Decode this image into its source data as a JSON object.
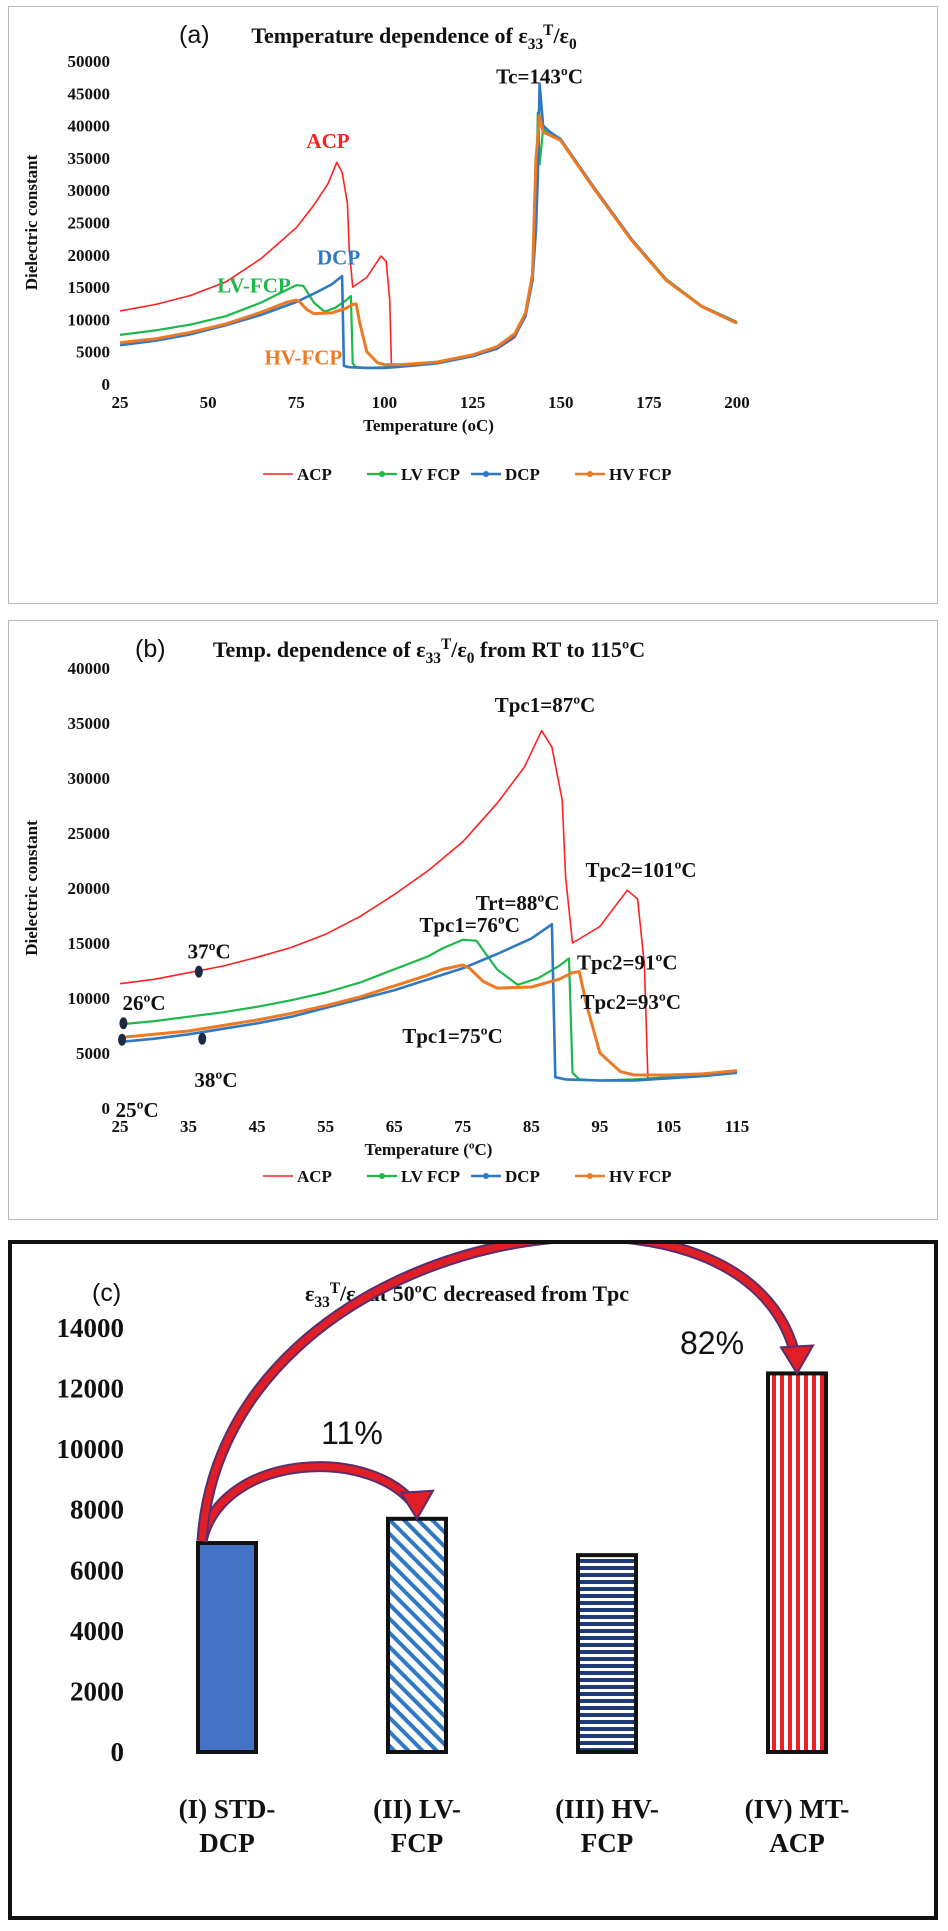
{
  "chart_data": [
    {
      "id": "a",
      "type": "line",
      "panel_label": "(a)",
      "title": "Temperature dependence of  ε33T/ε0",
      "xlabel": "Temperature (oC)",
      "ylabel": "Dielectric constant",
      "xlim": [
        25,
        200
      ],
      "ylim": [
        0,
        50000
      ],
      "x_ticks": [
        25,
        50,
        75,
        100,
        125,
        150,
        175,
        200
      ],
      "y_ticks": [
        0,
        5000,
        10000,
        15000,
        20000,
        25000,
        30000,
        35000,
        40000,
        45000,
        50000
      ],
      "grid": false,
      "legend_position": "bottom",
      "series": [
        {
          "name": "ACP",
          "color": "#ff2020",
          "marker": "none",
          "width": 1.6,
          "x": [
            25,
            35,
            45,
            55,
            65,
            75,
            80,
            84,
            86.5,
            88,
            89.5,
            90,
            91,
            95,
            99,
            100.5,
            101.5,
            102,
            105,
            115,
            125,
            132,
            137,
            140,
            142,
            143,
            144,
            147,
            150,
            160,
            170,
            180,
            190,
            200
          ],
          "y": [
            11300,
            12300,
            13700,
            15800,
            19400,
            24200,
            27700,
            31000,
            34300,
            32800,
            28000,
            21000,
            15000,
            16500,
            19800,
            19000,
            13000,
            2700,
            2800,
            3300,
            4300,
            5400,
            7200,
            10500,
            17000,
            30000,
            40500,
            39000,
            37800,
            30000,
            22500,
            16000,
            12000,
            9500
          ]
        },
        {
          "name": "LV FCP",
          "color": "#1db84a",
          "marker": "dot",
          "width": 2.2,
          "x": [
            25,
            35,
            45,
            55,
            65,
            72,
            75,
            77,
            78.5,
            80,
            83,
            86,
            89,
            90.5,
            91,
            92,
            95,
            100,
            105,
            115,
            125,
            132,
            137,
            140,
            142,
            143,
            143.5,
            144,
            145,
            147,
            150,
            160,
            170,
            180,
            190,
            200
          ],
          "y": [
            7600,
            8300,
            9200,
            10500,
            12600,
            14500,
            15300,
            15200,
            13900,
            12600,
            11200,
            11800,
            12900,
            13600,
            3200,
            2600,
            2500,
            2600,
            2800,
            3300,
            4400,
            5600,
            7600,
            11000,
            17000,
            28000,
            42000,
            34000,
            39500,
            38500,
            37800,
            30000,
            22500,
            16200,
            12100,
            9600
          ]
        },
        {
          "name": "DCP",
          "color": "#2f78c4",
          "marker": "dot",
          "width": 2.6,
          "x": [
            25,
            35,
            45,
            55,
            65,
            75,
            80,
            85,
            88,
            88.5,
            90,
            95,
            100,
            105,
            115,
            125,
            132,
            137,
            140,
            142,
            143,
            143.5,
            144,
            145,
            147,
            150,
            160,
            170,
            180,
            190,
            200
          ],
          "y": [
            6000,
            6700,
            7700,
            9100,
            10700,
            12700,
            14000,
            15400,
            16700,
            2800,
            2600,
            2500,
            2500,
            2700,
            3200,
            4300,
            5500,
            7500,
            10500,
            16000,
            24000,
            32000,
            46500,
            40000,
            39000,
            37900,
            30000,
            22500,
            16100,
            12000,
            9500
          ]
        },
        {
          "name": "HV FCP",
          "color": "#ec7a24",
          "marker": "dot",
          "width": 3,
          "x": [
            25,
            35,
            45,
            55,
            65,
            72,
            75,
            76,
            78,
            80,
            85,
            89,
            91,
            92,
            93,
            95,
            98,
            100,
            105,
            115,
            125,
            132,
            137,
            140,
            142,
            143,
            144,
            145,
            147,
            150,
            160,
            170,
            180,
            190,
            200
          ],
          "y": [
            6400,
            7000,
            8000,
            9300,
            11100,
            12600,
            13000,
            12700,
            11500,
            10900,
            11000,
            11700,
            12300,
            12400,
            9500,
            5000,
            3300,
            3000,
            3000,
            3400,
            4500,
            5800,
            7800,
            11000,
            17000,
            35000,
            41500,
            39000,
            38500,
            37700,
            29800,
            22300,
            16000,
            12000,
            9400
          ]
        }
      ],
      "annotations": [
        {
          "text": "ACP",
          "x": 84,
          "y": 36500,
          "color": "#ff2020"
        },
        {
          "text": "DCP",
          "x": 87,
          "y": 18500,
          "color": "#2f78c4"
        },
        {
          "text": "LV-FCP",
          "x": 63,
          "y": 14200,
          "color": "#1db84a"
        },
        {
          "text": "HV-FCP",
          "x": 77,
          "y": 3000,
          "color": "#ec7a24"
        },
        {
          "text": "Tc=143ºC",
          "x": 144,
          "y": 46500,
          "color": "#111111"
        }
      ]
    },
    {
      "id": "b",
      "type": "line",
      "panel_label": "(b)",
      "title": "Temp. dependence of ε33T/ε0 from RT to 115ºC",
      "xlabel": "Temperature (ºC)",
      "ylabel": "Dielectric constant",
      "xlim": [
        25,
        115
      ],
      "ylim": [
        0,
        40000
      ],
      "x_ticks": [
        25,
        35,
        45,
        55,
        65,
        75,
        85,
        95,
        105,
        115
      ],
      "y_ticks": [
        0,
        5000,
        10000,
        15000,
        20000,
        25000,
        30000,
        35000,
        40000
      ],
      "grid": false,
      "legend_position": "bottom",
      "series": [
        {
          "name": "ACP",
          "color": "#ff2020",
          "marker": "none",
          "width": 1.6,
          "x": [
            25,
            30,
            35,
            40,
            45,
            50,
            55,
            60,
            65,
            70,
            75,
            80,
            84,
            86.5,
            88,
            89.5,
            90,
            91,
            95,
            99,
            100.5,
            101.5,
            102,
            105,
            110,
            115
          ],
          "y": [
            11300,
            11700,
            12300,
            12900,
            13700,
            14600,
            15800,
            17400,
            19400,
            21600,
            24200,
            27700,
            31000,
            34300,
            32800,
            28000,
            21000,
            15000,
            16500,
            19800,
            19000,
            13000,
            2700,
            2800,
            3000,
            3300
          ]
        },
        {
          "name": "LV FCP",
          "color": "#1db84a",
          "marker": "dot",
          "width": 2.2,
          "x": [
            25,
            30,
            35,
            40,
            45,
            50,
            55,
            60,
            65,
            70,
            72,
            75,
            77,
            78.5,
            80,
            83,
            86,
            89,
            90.5,
            91,
            92,
            95,
            100,
            105,
            110,
            115
          ],
          "y": [
            7600,
            7900,
            8300,
            8700,
            9200,
            9800,
            10500,
            11400,
            12600,
            13800,
            14500,
            15300,
            15200,
            13900,
            12600,
            11200,
            11800,
            12900,
            13600,
            3200,
            2600,
            2500,
            2600,
            2800,
            3000,
            3300
          ]
        },
        {
          "name": "DCP",
          "color": "#2f78c4",
          "marker": "dot",
          "width": 2.6,
          "x": [
            25,
            30,
            35,
            40,
            45,
            50,
            55,
            60,
            65,
            70,
            75,
            80,
            85,
            88,
            88.5,
            90,
            95,
            100,
            105,
            110,
            115
          ],
          "y": [
            6000,
            6300,
            6700,
            7200,
            7700,
            8300,
            9100,
            9900,
            10700,
            11700,
            12700,
            14000,
            15400,
            16700,
            2800,
            2600,
            2500,
            2500,
            2700,
            2900,
            3200
          ]
        },
        {
          "name": "HV FCP",
          "color": "#ec7a24",
          "marker": "dot",
          "width": 3,
          "x": [
            25,
            30,
            35,
            40,
            45,
            50,
            55,
            60,
            65,
            70,
            72,
            75,
            76,
            78,
            80,
            85,
            89,
            91,
            92,
            93,
            95,
            98,
            100,
            105,
            110,
            115
          ],
          "y": [
            6400,
            6700,
            7000,
            7500,
            8000,
            8600,
            9300,
            10100,
            11100,
            12100,
            12600,
            13000,
            12700,
            11500,
            10900,
            11000,
            11700,
            12300,
            12400,
            9500,
            5000,
            3300,
            3000,
            3000,
            3100,
            3400
          ]
        }
      ],
      "annotations": [
        {
          "text": "Tpc1=87ºC",
          "x": 87,
          "y": 36000,
          "color": "#111111"
        },
        {
          "text": "Tpc2=101ºC",
          "x": 101,
          "y": 21000,
          "color": "#111111"
        },
        {
          "text": "Trt=88ºC",
          "x": 83,
          "y": 18000,
          "color": "#111111"
        },
        {
          "text": "Tpc1=76ºC",
          "x": 76,
          "y": 16000,
          "color": "#111111"
        },
        {
          "text": "Tpc2=91ºC",
          "x": 99,
          "y": 12600,
          "color": "#111111"
        },
        {
          "text": "Tpc2=93ºC",
          "x": 99.5,
          "y": 9000,
          "color": "#111111"
        },
        {
          "text": "Tpc1=75ºC",
          "x": 73.5,
          "y": 5900,
          "color": "#111111"
        },
        {
          "text": "37ºC",
          "x": 38,
          "y": 13600,
          "color": "#111111"
        },
        {
          "text": "26ºC",
          "x": 28.5,
          "y": 8900,
          "color": "#111111"
        },
        {
          "text": "38ºC",
          "x": 39,
          "y": 1900,
          "color": "#111111"
        },
        {
          "text": "25ºC",
          "x": 27.5,
          "y": -800,
          "color": "#111111"
        }
      ],
      "markers": [
        {
          "x": 36.5,
          "y": 12400
        },
        {
          "x": 25.5,
          "y": 7700
        },
        {
          "x": 25.3,
          "y": 6200
        },
        {
          "x": 37,
          "y": 6300
        }
      ]
    },
    {
      "id": "c",
      "type": "bar",
      "panel_label": "(c)",
      "title": "ε33T/ε0 at 50ºC decreased from Tpc",
      "categories": [
        "(I) STD-DCP",
        "(II) LV-FCP",
        "(III) HV-FCP",
        "(IV) MT-ACP"
      ],
      "category_lines": [
        [
          "(I) STD-",
          "DCP"
        ],
        [
          "(II) LV-",
          "FCP"
        ],
        [
          "(III) HV-",
          "FCP"
        ],
        [
          "(IV) MT-",
          "ACP"
        ]
      ],
      "values": [
        6900,
        7700,
        6500,
        12500
      ],
      "fills": [
        "solid-blue",
        "diagonal-blue",
        "horizontal-navy",
        "vertical-red"
      ],
      "ylim": [
        0,
        14000
      ],
      "y_ticks": [
        0,
        2000,
        4000,
        6000,
        8000,
        10000,
        12000,
        14000
      ],
      "grid": false,
      "annotations": [
        {
          "text": "11%",
          "from": 0,
          "to": 1
        },
        {
          "text": "82%",
          "from": 0,
          "to": 3
        }
      ]
    }
  ]
}
